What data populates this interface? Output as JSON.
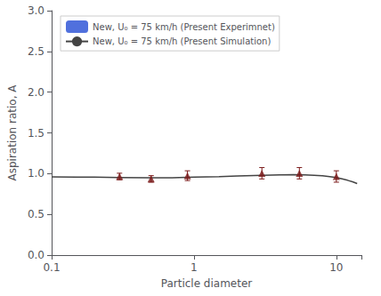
{
  "chart_data": {
    "type": "line",
    "xlabel": "Particle diameter",
    "ylabel": "Aspiration ratio, A",
    "log": "x",
    "xlim": [
      0.1,
      15
    ],
    "ylim": [
      0.0,
      3.0
    ],
    "xticks": [
      0.1,
      1,
      10
    ],
    "yticks": [
      {
        "value": 0.0,
        "label": "0.0"
      },
      0.5,
      {
        "value": 1.0,
        "label": "1.0"
      },
      1.5,
      {
        "value": 2.0,
        "label": "2.0"
      },
      2.5,
      {
        "value": 3.0,
        "label": "3.0"
      }
    ],
    "grid": false,
    "legend": "upper left",
    "series": [
      {
        "name": "New, U₀ = 75 km/h (Present Experimnet)",
        "type": "scatter",
        "marker": "triangle",
        "color": "#7B1A1A",
        "x": [
          0.3,
          0.5,
          0.9,
          3.0,
          5.5,
          10.0
        ],
        "values": [
          0.965,
          0.935,
          0.975,
          1.005,
          1.005,
          0.965
        ],
        "yerr": [
          0.04,
          0.04,
          0.06,
          0.07,
          0.07,
          0.07
        ]
      },
      {
        "name": "New, U₀ = 75 km/h (Present Simulation)",
        "type": "line",
        "line_style": "solid",
        "color": "#444444",
        "x": [
          0.1,
          0.15,
          0.2,
          0.3,
          0.5,
          0.7,
          1.0,
          1.5,
          2.0,
          3.0,
          4.0,
          5.0,
          6.0,
          7.0,
          8.0,
          9.0,
          10.0,
          11.0,
          12.0,
          13.0,
          14.0
        ],
        "values": [
          0.96,
          0.958,
          0.956,
          0.953,
          0.948,
          0.95,
          0.956,
          0.963,
          0.97,
          0.98,
          0.985,
          0.987,
          0.985,
          0.98,
          0.973,
          0.963,
          0.952,
          0.935,
          0.918,
          0.9,
          0.878
        ]
      }
    ]
  }
}
